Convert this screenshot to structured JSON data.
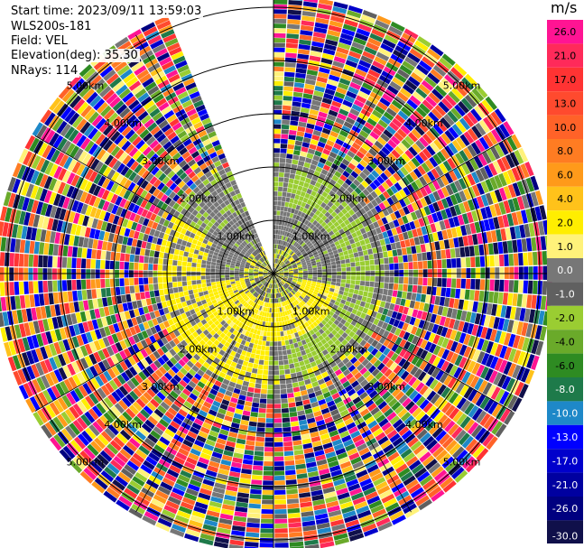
{
  "info": {
    "start_time": "Start time: 2023/09/11 13:59:03",
    "instrument": "WLS200s-181",
    "field": "Field: VEL",
    "elevation": "Elevation(deg): 35.30",
    "nrays": "NRays: 114"
  },
  "colorbar": {
    "unit": "m/s",
    "ticks": [
      "26.0",
      "21.0",
      "17.0",
      "13.0",
      "10.0",
      "8.0",
      "6.0",
      "4.0",
      "2.0",
      "1.0",
      "0.0",
      "-1.0",
      "-2.0",
      "-4.0",
      "-6.0",
      "-8.0",
      "-10.0",
      "-13.0",
      "-17.0",
      "-21.0",
      "-26.0",
      "-30.0"
    ],
    "colors": [
      "#ff1493",
      "#ff2a5a",
      "#ff3333",
      "#ff4a2e",
      "#ff6228",
      "#ff7c22",
      "#ff9a1a",
      "#ffc21a",
      "#ffee00",
      "#fff27a",
      "#777777",
      "#606060",
      "#9acd32",
      "#6aaa2a",
      "#2e8b22",
      "#1e7a4a",
      "#1e88c8",
      "#0000ff",
      "#0000cc",
      "#0000a0",
      "#000080",
      "#10104a"
    ]
  },
  "chart_data": {
    "type": "heatmap",
    "title": "",
    "projection": "polar PPI",
    "field": "VEL",
    "units": "m/s",
    "nrays": 114,
    "elevation_deg": 35.3,
    "gap_azimuth_deg": [
      335,
      360
    ],
    "range_ring_labels": [
      "1.00km",
      "2.00km",
      "3.00km",
      "4.00km",
      "5.00km"
    ],
    "zones": [
      {
        "range_km": [
          0.0,
          0.5
        ],
        "dominant_values": "mixed low velocities near lidar"
      },
      {
        "range_km": [
          0.5,
          1.2
        ],
        "dominant_values": "grey 0 to -1 m/s north, yellow +1 to +2 m/s south"
      },
      {
        "range_km": [
          1.2,
          2.1
        ],
        "dominant_values": "green -2 m/s north-east, yellow +2 m/s south-west, grey elsewhere"
      },
      {
        "range_km": [
          2.1,
          5.4
        ],
        "dominant_values": "noise, full range -30 to 26 m/s"
      }
    ]
  }
}
